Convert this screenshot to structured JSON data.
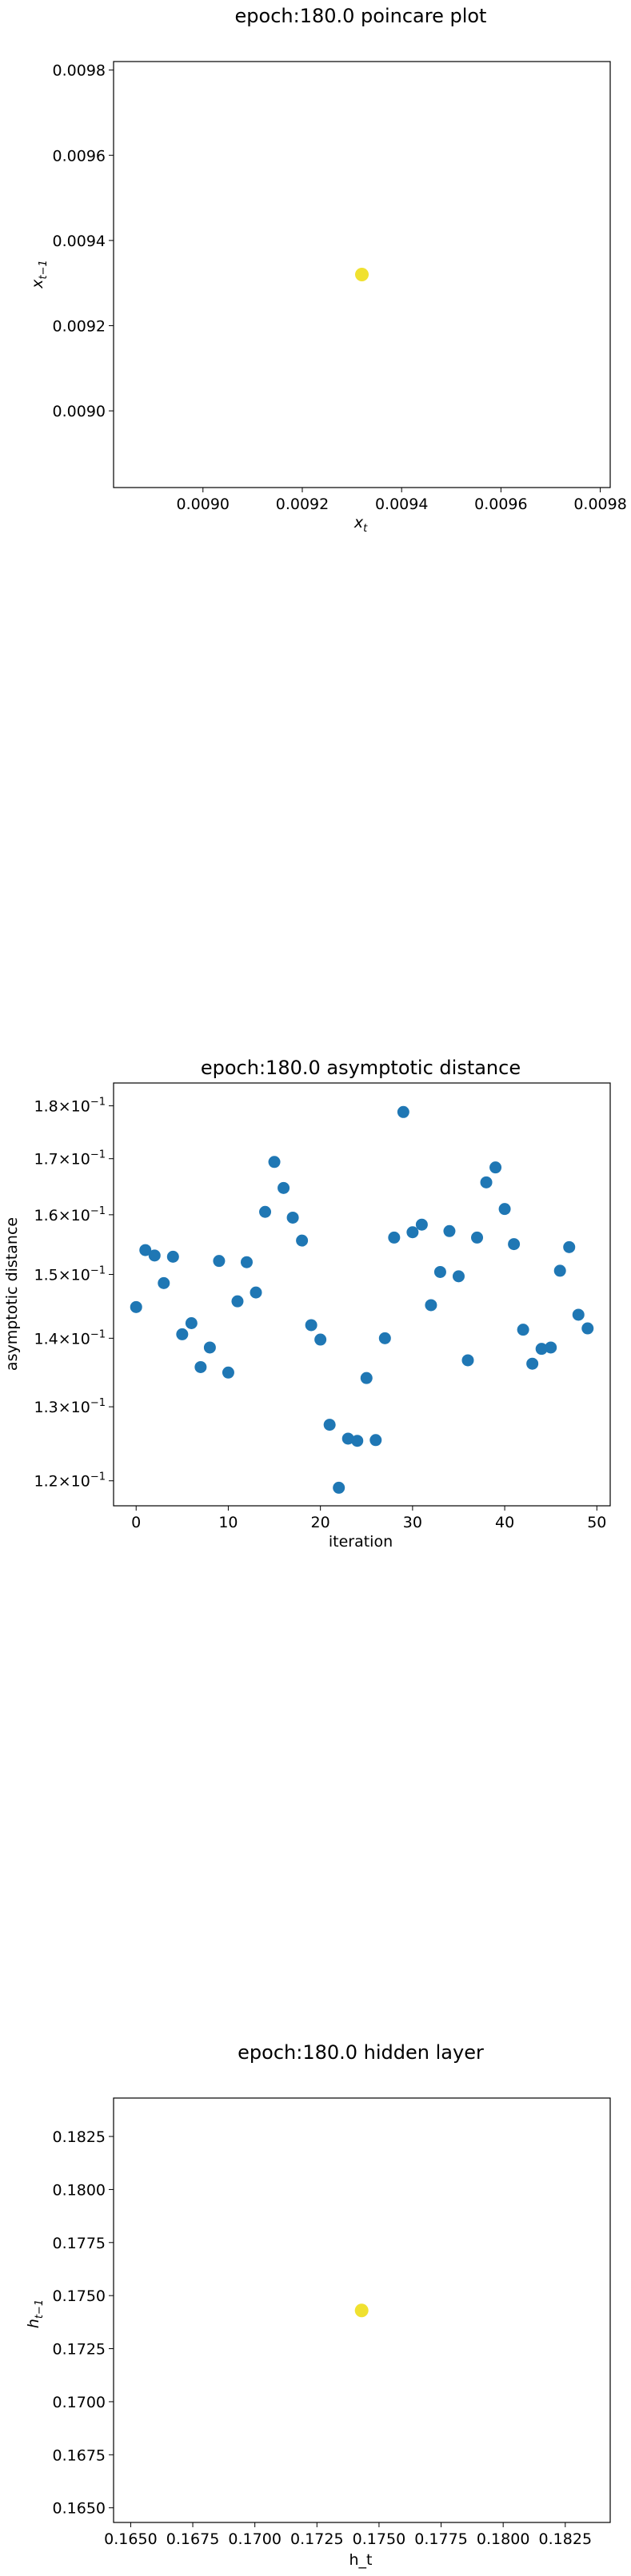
{
  "colors": {
    "point_yellow": "#f0e130",
    "point_blue": "#1f77b4"
  },
  "chart_data": [
    {
      "type": "scatter",
      "title": "epoch:180.0 poincare plot",
      "xlabel": "x",
      "xlabel_sub": "t",
      "ylabel": "x",
      "ylabel_sub": "t−1",
      "xlim": [
        0.00882,
        0.00982
      ],
      "ylim": [
        0.00882,
        0.00982
      ],
      "xticks": [
        "0.0090",
        "0.0092",
        "0.0094",
        "0.0096",
        "0.0098"
      ],
      "xtick_values": [
        0.009,
        0.0092,
        0.0094,
        0.0096,
        0.0098
      ],
      "yticks": [
        "0.0090",
        "0.0092",
        "0.0094",
        "0.0096",
        "0.0098"
      ],
      "ytick_values": [
        0.009,
        0.0092,
        0.0094,
        0.0096,
        0.0098
      ],
      "points": [
        {
          "x": 0.00932,
          "y": 0.00932
        }
      ],
      "color": "#f0e130",
      "grid": false
    },
    {
      "type": "scatter",
      "title": "epoch:180.0 asymptotic distance",
      "xlabel": "iteration",
      "ylabel": "asymptotic distance",
      "yscale": "log",
      "xlim": [
        -2.45,
        51.45
      ],
      "ylim": [
        0.1168,
        0.1845
      ],
      "xticks": [
        "0",
        "10",
        "20",
        "30",
        "40",
        "50"
      ],
      "xtick_values": [
        0,
        10,
        20,
        30,
        40,
        50
      ],
      "ytick_values": [
        0.12,
        0.13,
        0.14,
        0.15,
        0.16,
        0.17,
        0.18
      ],
      "ytick_mantissas": [
        "1.2",
        "1.3",
        "1.4",
        "1.5",
        "1.6",
        "1.7",
        "1.8"
      ],
      "ytick_base": "×10",
      "ytick_exp": "−1",
      "x": [
        0,
        1,
        2,
        3,
        4,
        5,
        6,
        7,
        8,
        9,
        10,
        11,
        12,
        13,
        14,
        15,
        16,
        17,
        18,
        19,
        20,
        21,
        22,
        23,
        24,
        25,
        26,
        27,
        28,
        29,
        30,
        31,
        32,
        33,
        34,
        35,
        36,
        37,
        38,
        39,
        40,
        41,
        42,
        43,
        44,
        45,
        46,
        47,
        48,
        49
      ],
      "y": [
        0.1448,
        0.154,
        0.1531,
        0.1486,
        0.1529,
        0.1406,
        0.1423,
        0.1357,
        0.1386,
        0.1522,
        0.1349,
        0.1457,
        0.152,
        0.1471,
        0.1605,
        0.1694,
        0.1647,
        0.1595,
        0.1556,
        0.142,
        0.1398,
        0.1275,
        0.1191,
        0.1256,
        0.1253,
        0.1341,
        0.1254,
        0.14,
        0.1561,
        0.1788,
        0.157,
        0.1583,
        0.1451,
        0.1504,
        0.1572,
        0.1497,
        0.1367,
        0.1561,
        0.1657,
        0.1684,
        0.161,
        0.155,
        0.1413,
        0.1362,
        0.1384,
        0.1386,
        0.1506,
        0.1545,
        0.1436,
        0.1415
      ],
      "color": "#1f77b4",
      "grid": false
    },
    {
      "type": "scatter",
      "title": "epoch:180.0 hidden layer",
      "xlabel": "h_t",
      "ylabel": "h",
      "ylabel_sub": "t−1",
      "xlim": [
        0.16431,
        0.18431
      ],
      "ylim": [
        0.16431,
        0.18431
      ],
      "xticks": [
        "0.1650",
        "0.1675",
        "0.1700",
        "0.1725",
        "0.1750",
        "0.1775",
        "0.1800",
        "0.1825"
      ],
      "xtick_values": [
        0.165,
        0.1675,
        0.17,
        0.1725,
        0.175,
        0.1775,
        0.18,
        0.1825
      ],
      "yticks": [
        "0.1650",
        "0.1675",
        "0.1700",
        "0.1725",
        "0.1750",
        "0.1775",
        "0.1800",
        "0.1825"
      ],
      "ytick_values": [
        0.165,
        0.1675,
        0.17,
        0.1725,
        0.175,
        0.1775,
        0.18,
        0.1825
      ],
      "points": [
        {
          "x": 0.1743,
          "y": 0.1743
        }
      ],
      "color": "#f0e130",
      "grid": false
    }
  ]
}
